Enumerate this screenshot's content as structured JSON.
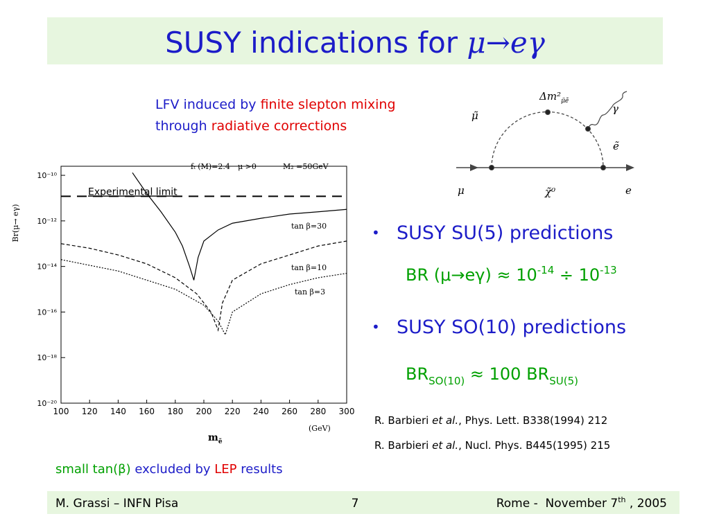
{
  "title": [
    "SUSY indications for ",
    "μ→eγ"
  ],
  "intro": {
    "line1": [
      "LFV induced by ",
      "finite slepton mixing"
    ],
    "line2": [
      "through ",
      "radiative corrections"
    ]
  },
  "diagram": {
    "labels": [
      "μ̃",
      "Δm²",
      "μ̃ẽ",
      "γ",
      "ẽ",
      "μ",
      "χ̃⁰",
      "e"
    ]
  },
  "bullets": [
    {
      "text": "SUSY SU(5) predictions",
      "formula": [
        "BR (μ→eγ) ≈ 10",
        "-14",
        " ÷ 10",
        "-13"
      ]
    },
    {
      "text": "SUSY SO(10) predictions",
      "formula": [
        "BR",
        "SO(10)",
        " ≈ 100 BR",
        "SU(5)"
      ]
    }
  ],
  "references": [
    [
      "R. Barbieri ",
      "et al.",
      ", Phys. Lett. B338(1994) 212"
    ],
    [
      "R. Barbieri ",
      "et al.",
      ", Nucl. Phys. B445(1995) 215"
    ]
  ],
  "note": [
    "small tan(β) ",
    "excluded by ",
    "LEP",
    " results"
  ],
  "footer": {
    "left": "M. Grassi – INFN Pisa",
    "page": "7",
    "right": [
      "Rome -  November 7",
      "th",
      " , 2005"
    ]
  },
  "chart_data": {
    "type": "line",
    "annotations": [
      "fₜ (M)=2.4",
      "μ >0",
      "M₂ =50GeV"
    ],
    "y_label": "Br(μ→ eγ)",
    "x_label": [
      "m",
      "ẽ"
    ],
    "x_unit": "(GeV)",
    "log_y": true,
    "xlim": [
      100,
      300
    ],
    "xticks": [
      100,
      120,
      140,
      160,
      180,
      200,
      220,
      240,
      260,
      280,
      300
    ],
    "ylim": [
      1e-20,
      2.5e-10
    ],
    "yticks": [
      {
        "value": 1e-10,
        "label": "10⁻¹⁰"
      },
      {
        "value": 1e-12,
        "label": "10⁻¹²"
      },
      {
        "value": 1e-14,
        "label": "10⁻¹⁴"
      },
      {
        "value": 1e-16,
        "label": "10⁻¹⁶"
      },
      {
        "value": 1e-18,
        "label": "10⁻¹⁸"
      },
      {
        "value": 1e-20,
        "label": "10⁻²⁰"
      }
    ],
    "experimental_limit": {
      "label": "Experimental limit",
      "value": 1.2e-11
    },
    "series": [
      {
        "name": "tan β=30",
        "color": "#000000",
        "dash": "none",
        "x": [
          150,
          160,
          170,
          180,
          185,
          190,
          193,
          196,
          200,
          210,
          220,
          240,
          260,
          280,
          300
        ],
        "values": [
          1.3e-10,
          1.6e-11,
          2.5e-12,
          3.2e-13,
          7.9e-14,
          1e-14,
          2.5e-15,
          2.5e-14,
          1.3e-13,
          4e-13,
          7.9e-13,
          1.3e-12,
          2e-12,
          2.5e-12,
          3.2e-12
        ]
      },
      {
        "name": "tan β=10",
        "color": "#000000",
        "dash": "5 3",
        "x": [
          100,
          120,
          140,
          160,
          180,
          195,
          205,
          210,
          213,
          220,
          240,
          260,
          280,
          300
        ],
        "values": [
          1e-13,
          6.3e-14,
          3.2e-14,
          1.3e-14,
          3.2e-15,
          6.3e-16,
          1e-16,
          1.6e-17,
          2.5e-16,
          2.5e-15,
          1.3e-14,
          3.2e-14,
          7.9e-14,
          1.3e-13
        ]
      },
      {
        "name": "tan β=3",
        "color": "#000000",
        "dash": "2 2",
        "x": [
          100,
          140,
          180,
          200,
          210,
          215,
          220,
          240,
          260,
          280,
          300
        ],
        "values": [
          2e-14,
          6.3e-15,
          1e-15,
          2e-16,
          4e-17,
          1e-17,
          1e-16,
          6.3e-16,
          1.6e-15,
          3.2e-15,
          5e-15
        ]
      }
    ]
  }
}
